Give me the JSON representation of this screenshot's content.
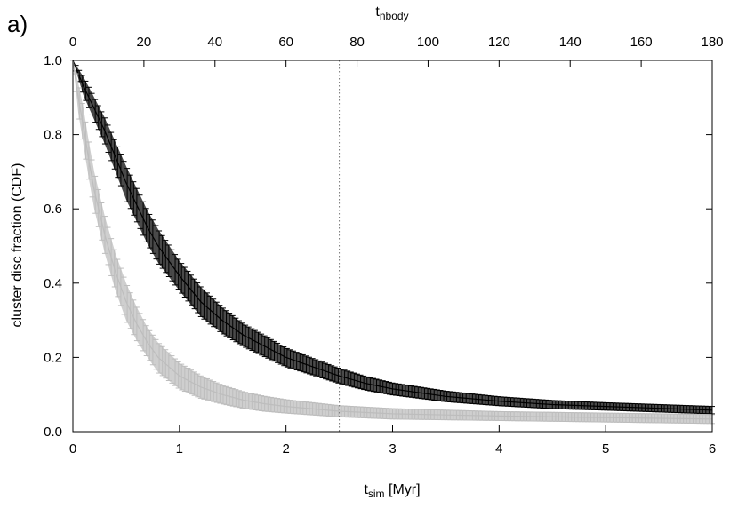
{
  "panel_label": "a)",
  "chart_data": {
    "type": "line",
    "title": "",
    "xlabel": {
      "main": "t",
      "sub": "sim",
      "suffix": " [Myr]"
    },
    "x2label": {
      "main": "t",
      "sub": "nbody"
    },
    "ylabel": "cluster disc fraction (CDF)",
    "xlim": [
      0,
      6
    ],
    "x2lim": [
      0,
      180
    ],
    "ylim": [
      0,
      1
    ],
    "x_ticks": [
      "0",
      "1",
      "2",
      "3",
      "4",
      "5",
      "6"
    ],
    "x2_ticks": [
      "0",
      "20",
      "40",
      "60",
      "80",
      "100",
      "120",
      "140",
      "160",
      "180"
    ],
    "y_ticks": [
      "0.0",
      "0.2",
      "0.4",
      "0.6",
      "0.8",
      "1.0"
    ],
    "reference_line": {
      "x": 2.5,
      "style": "dotted"
    },
    "series": [
      {
        "color": "#000000",
        "fill": "#4a4a4a",
        "x": [
          0,
          0.1,
          0.2,
          0.3,
          0.4,
          0.5,
          0.6,
          0.7,
          0.8,
          1.0,
          1.2,
          1.4,
          1.6,
          1.8,
          2.0,
          2.25,
          2.5,
          2.75,
          3.0,
          3.5,
          4.0,
          4.5,
          5.0,
          5.5,
          6.0
        ],
        "y": [
          1.0,
          0.93,
          0.87,
          0.81,
          0.74,
          0.67,
          0.61,
          0.55,
          0.5,
          0.42,
          0.35,
          0.3,
          0.26,
          0.23,
          0.2,
          0.175,
          0.15,
          0.13,
          0.115,
          0.095,
          0.082,
          0.073,
          0.068,
          0.063,
          0.058
        ],
        "err": [
          0.0,
          0.025,
          0.03,
          0.035,
          0.04,
          0.045,
          0.045,
          0.045,
          0.045,
          0.04,
          0.04,
          0.035,
          0.03,
          0.028,
          0.025,
          0.022,
          0.02,
          0.018,
          0.016,
          0.014,
          0.012,
          0.011,
          0.01,
          0.01,
          0.01
        ]
      },
      {
        "color": "#bdbdbd",
        "fill": "#cfcfcf",
        "x": [
          0,
          0.05,
          0.1,
          0.15,
          0.2,
          0.3,
          0.4,
          0.5,
          0.6,
          0.7,
          0.8,
          1.0,
          1.2,
          1.4,
          1.6,
          1.8,
          2.0,
          2.5,
          3.0,
          3.5,
          4.0,
          4.5,
          5.0,
          5.5,
          6.0
        ],
        "y": [
          1.0,
          0.9,
          0.82,
          0.73,
          0.65,
          0.53,
          0.43,
          0.35,
          0.29,
          0.24,
          0.2,
          0.15,
          0.12,
          0.1,
          0.085,
          0.075,
          0.068,
          0.055,
          0.048,
          0.045,
          0.042,
          0.04,
          0.038,
          0.036,
          0.034
        ],
        "err": [
          0.0,
          0.04,
          0.05,
          0.05,
          0.05,
          0.05,
          0.05,
          0.05,
          0.045,
          0.04,
          0.04,
          0.035,
          0.03,
          0.025,
          0.022,
          0.02,
          0.018,
          0.015,
          0.014,
          0.013,
          0.012,
          0.012,
          0.012,
          0.012,
          0.012
        ]
      }
    ]
  }
}
